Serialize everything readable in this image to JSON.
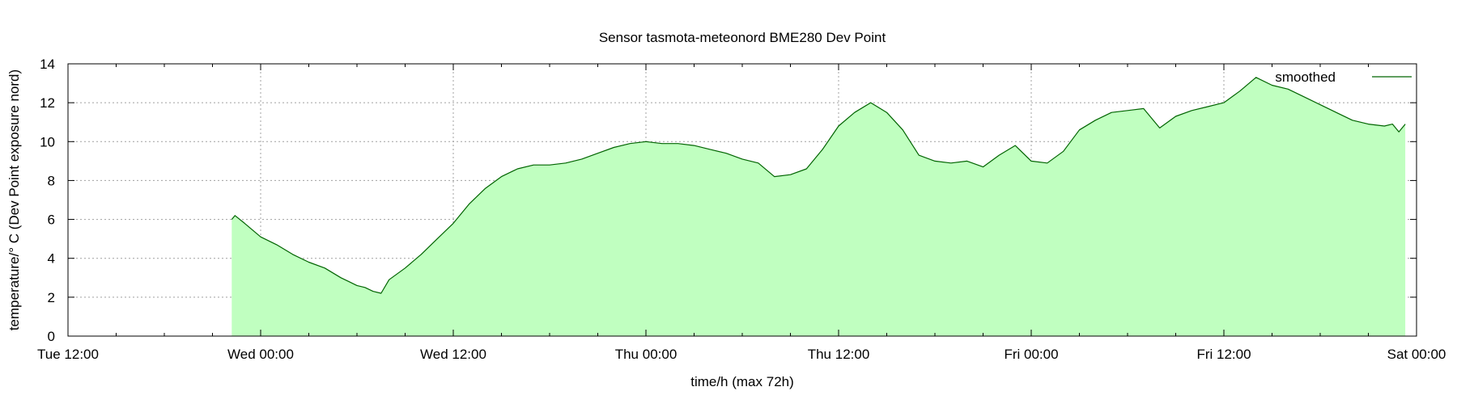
{
  "chart_data": {
    "type": "area",
    "title": "Sensor tasmota-meteonord BME280 Dev Point",
    "xlabel": "time/h (max 72h)",
    "ylabel": "temperature/° C (Dev Point exposure nord)",
    "legend_position": "top-right",
    "grid": true,
    "xlim": [
      0,
      84
    ],
    "ylim": [
      0,
      14
    ],
    "x_tick_values": [
      0,
      12,
      24,
      36,
      48,
      60,
      72,
      84
    ],
    "x_tick_labels": [
      "Tue 12:00",
      "Wed 00:00",
      "Wed 12:00",
      "Thu 00:00",
      "Thu 12:00",
      "Fri 00:00",
      "Fri 12:00",
      "Sat 00:00"
    ],
    "y_tick_values": [
      0,
      2,
      4,
      6,
      8,
      10,
      12,
      14
    ],
    "y_tick_labels": [
      "0",
      "2",
      "4",
      "6",
      "8",
      "10",
      "12",
      "14"
    ],
    "colors": {
      "line": "#006400",
      "fill": "#c0ffc0",
      "grid": "#a0a0a0",
      "axis": "#000000"
    },
    "series": [
      {
        "name": "smoothed",
        "x": [
          10.2,
          10.4,
          11,
          12,
          13,
          14,
          15,
          16,
          17,
          17.5,
          18,
          18.5,
          19,
          19.5,
          20,
          21,
          22,
          23,
          24,
          25,
          26,
          27,
          28,
          29,
          30,
          31,
          32,
          33,
          34,
          35,
          36,
          37,
          38,
          39,
          40,
          41,
          42,
          43,
          44,
          45,
          46,
          47,
          48,
          49,
          50,
          51,
          52,
          53,
          54,
          55,
          56,
          57,
          58,
          59,
          60,
          61,
          62,
          63,
          64,
          65,
          66,
          67,
          68,
          69,
          70,
          71,
          72,
          73,
          74,
          75,
          76,
          77,
          78,
          79,
          80,
          81,
          82,
          82.5,
          82.9,
          83.3
        ],
        "y": [
          6.0,
          6.2,
          5.8,
          5.1,
          4.7,
          4.2,
          3.8,
          3.5,
          3.0,
          2.8,
          2.6,
          2.5,
          2.3,
          2.2,
          2.9,
          3.5,
          4.2,
          5.0,
          5.8,
          6.8,
          7.6,
          8.2,
          8.6,
          8.8,
          8.8,
          8.9,
          9.1,
          9.4,
          9.7,
          9.9,
          10.0,
          9.9,
          9.9,
          9.8,
          9.6,
          9.4,
          9.1,
          8.9,
          8.2,
          8.3,
          8.6,
          9.6,
          10.8,
          11.5,
          12.0,
          11.5,
          10.6,
          9.3,
          9.0,
          8.9,
          9.0,
          8.7,
          9.3,
          9.8,
          9.0,
          8.9,
          9.5,
          10.6,
          11.1,
          11.5,
          11.6,
          11.7,
          10.7,
          11.3,
          11.6,
          11.8,
          12.0,
          12.6,
          13.3,
          12.9,
          12.7,
          12.3,
          11.9,
          11.5,
          11.1,
          10.9,
          10.8,
          10.9,
          10.5,
          10.9
        ]
      }
    ]
  }
}
